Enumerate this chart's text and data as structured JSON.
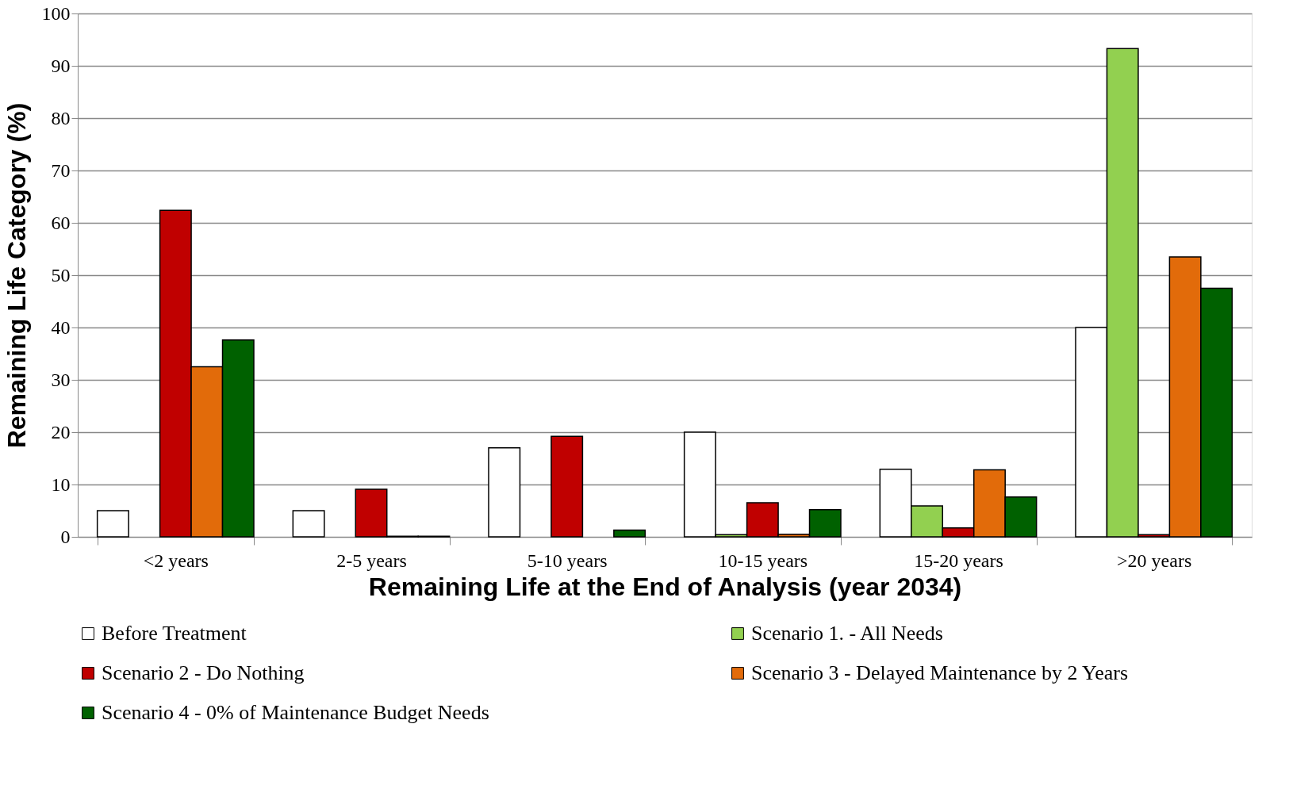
{
  "chart_data": {
    "type": "bar",
    "xlabel": "Remaining Life at the End of Analysis (year 2034)",
    "ylabel": "Remaining Life Category (%)",
    "categories": [
      "<2 years",
      "2-5 years",
      "5-10 years",
      "10-15 years",
      "15-20 years",
      ">20 years"
    ],
    "series": [
      {
        "name": "Before Treatment",
        "color": "#ffffff",
        "values": [
          5,
          5,
          17,
          20,
          12.9,
          40
        ]
      },
      {
        "name": "Scenario 1. - All Needs",
        "color": "#92d050",
        "values": [
          null,
          null,
          null,
          0.4,
          5.9,
          93.3
        ]
      },
      {
        "name": "Scenario 2 - Do Nothing",
        "color": "#c00000",
        "values": [
          62.4,
          9.1,
          19.2,
          6.5,
          1.7,
          0.4
        ]
      },
      {
        "name": "Scenario 3 - Delayed Maintenance by 2 Years",
        "color": "#e26b0a",
        "values": [
          32.5,
          0.1,
          null,
          0.5,
          12.8,
          53.5
        ]
      },
      {
        "name": "Scenario 4 - 0% of Maintenance Budget Needs",
        "color": "#006100",
        "values": [
          37.6,
          0.1,
          1.3,
          5.2,
          7.6,
          47.5
        ]
      }
    ],
    "ylim": [
      0,
      100
    ],
    "yticks": [
      0,
      10,
      20,
      30,
      40,
      50,
      60,
      70,
      80,
      90,
      100
    ],
    "grid": "y",
    "legend": "bottom"
  }
}
